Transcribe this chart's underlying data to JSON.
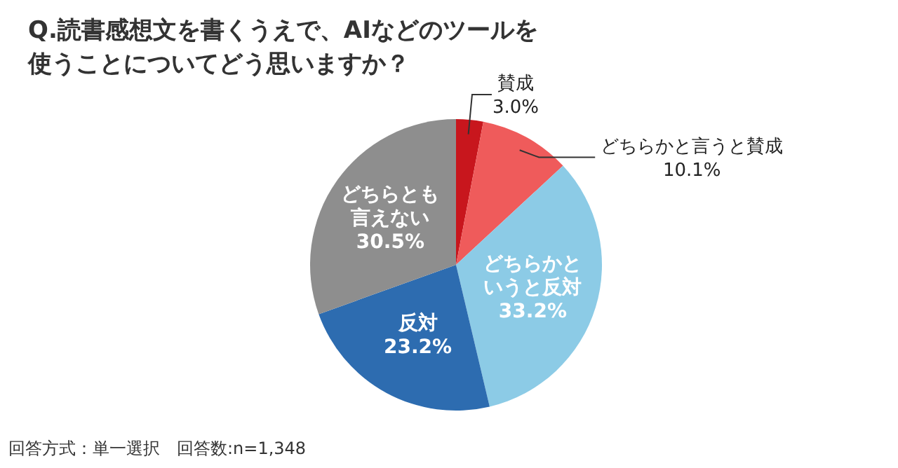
{
  "chart_data": {
    "type": "pie",
    "title": "Q.読書感想文を書くうえで、AIなどのツールを使うことについてどう思いますか？",
    "categories": [
      "賛成",
      "どちらかと言うと賛成",
      "どちらかというと反対",
      "反対",
      "どちらとも言えない"
    ],
    "values": [
      3.0,
      10.1,
      33.2,
      23.2,
      30.5
    ],
    "value_labels": [
      "3.0%",
      "10.1%",
      "33.2%",
      "23.2%",
      "30.5%"
    ],
    "colors": [
      "#c8161d",
      "#ef5b5b",
      "#8ccbe6",
      "#2d6cb0",
      "#8e8e8e"
    ],
    "annotations": [
      "回答方式：単一選択　回答数:n=1,348"
    ]
  }
}
